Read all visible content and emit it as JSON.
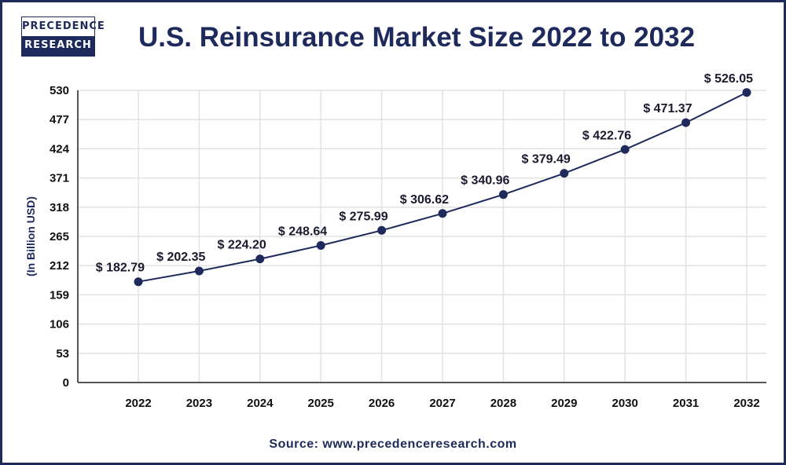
{
  "logo": {
    "line1": "PRECEDENCE",
    "line2": "RESEARCH"
  },
  "source": "Source: www.precedenceresearch.com",
  "colors": {
    "line": "#1f2a5c",
    "marker": "#1f2a5c",
    "grid": "#e2e2e2",
    "border": "#1f2a5c"
  },
  "chart_data": {
    "type": "line",
    "title": "U.S. Reinsurance Market Size 2022 to 2032",
    "xlabel": "",
    "ylabel": "(In Billion USD)",
    "categories": [
      "2022",
      "2023",
      "2024",
      "2025",
      "2026",
      "2027",
      "2028",
      "2029",
      "2030",
      "2031",
      "2032"
    ],
    "values": [
      182.79,
      202.35,
      224.2,
      248.64,
      275.99,
      306.62,
      340.96,
      379.49,
      422.76,
      471.37,
      526.05
    ],
    "data_labels": [
      "$ 182.79",
      "$ 202.35",
      "$ 224.20",
      "$ 248.64",
      "$ 275.99",
      "$ 306.62",
      "$ 340.96",
      "$ 379.49",
      "$ 422.76",
      "$ 471.37",
      "$ 526.05"
    ],
    "yticks": [
      0,
      53,
      106,
      159,
      212,
      265,
      318,
      371,
      424,
      477,
      530
    ],
    "ylim": [
      0,
      530
    ],
    "grid": true,
    "legend": "none"
  }
}
